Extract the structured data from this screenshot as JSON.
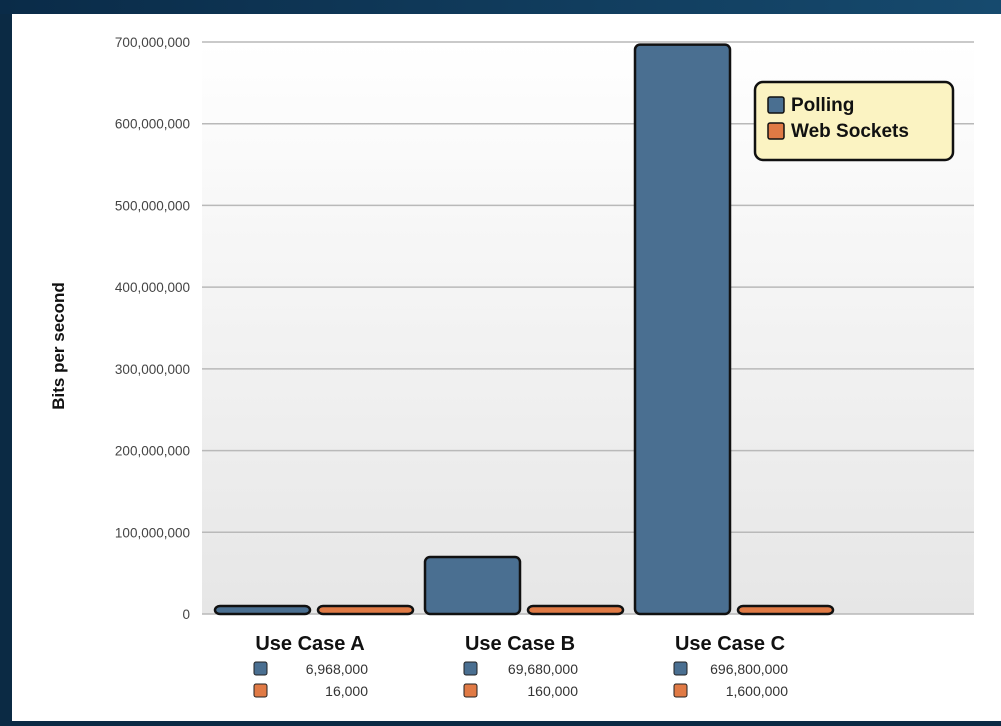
{
  "chart_data": {
    "type": "bar",
    "title": "",
    "ylabel": "Bits per second",
    "xlabel": "",
    "ylim": [
      0,
      700000000
    ],
    "yticks": [
      0,
      100000000,
      200000000,
      300000000,
      400000000,
      500000000,
      600000000,
      700000000
    ],
    "ytick_labels": [
      "0",
      "100,000,000",
      "200,000,000",
      "300,000,000",
      "400,000,000",
      "500,000,000",
      "600,000,000",
      "700,000,000"
    ],
    "categories": [
      "Use Case A",
      "Use Case B",
      "Use Case C"
    ],
    "series": [
      {
        "name": "Polling",
        "color": "#4a6f91",
        "values": [
          6968000,
          69680000,
          696800000
        ],
        "labels": [
          "6,968,000",
          "69,680,000",
          "696,800,000"
        ]
      },
      {
        "name": "Web Sockets",
        "color": "#e07a45",
        "values": [
          16000,
          160000,
          1600000
        ],
        "labels": [
          "16,000",
          "160,000",
          "1,600,000"
        ]
      }
    ],
    "legend": {
      "position": "top-right",
      "background": "#fbf3c2"
    },
    "grid": true
  }
}
